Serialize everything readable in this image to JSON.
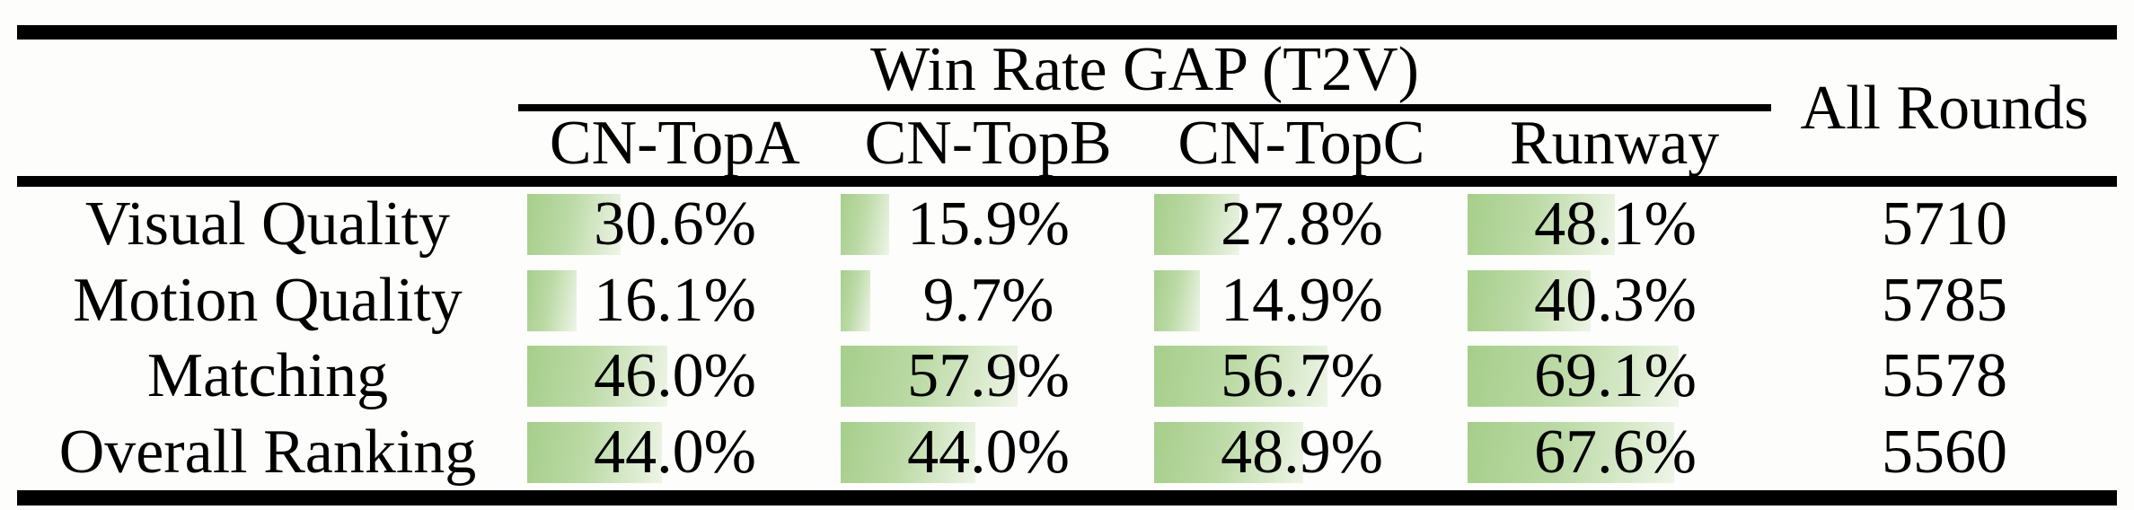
{
  "table": {
    "group_header": "Win Rate GAP (T2V)",
    "all_rounds_header": "All Rounds",
    "model_columns": [
      "CN-TopA",
      "CN-TopB",
      "CN-TopC",
      "Runway"
    ],
    "rows": [
      {
        "label": "Visual Quality",
        "win_rates_pct": [
          30.6,
          15.9,
          27.8,
          48.1
        ],
        "all_rounds": "5710"
      },
      {
        "label": "Motion Quality",
        "win_rates_pct": [
          16.1,
          9.7,
          14.9,
          40.3
        ],
        "all_rounds": "5785"
      },
      {
        "label": "Matching",
        "win_rates_pct": [
          46.0,
          57.9,
          56.7,
          69.1
        ],
        "all_rounds": "5578"
      },
      {
        "label": "Overall Ranking",
        "win_rates_pct": [
          44.0,
          44.0,
          48.9,
          67.6
        ],
        "all_rounds": "5560"
      }
    ]
  },
  "chart_data": {
    "type": "table",
    "title": "Win Rate GAP (T2V)",
    "columns": [
      "CN-TopA",
      "CN-TopB",
      "CN-TopC",
      "Runway",
      "All Rounds"
    ],
    "categories": [
      "Visual Quality",
      "Motion Quality",
      "Matching",
      "Overall Ranking"
    ],
    "series": [
      {
        "name": "CN-TopA",
        "values": [
          30.6,
          16.1,
          46.0,
          44.0
        ]
      },
      {
        "name": "CN-TopB",
        "values": [
          15.9,
          9.7,
          57.9,
          44.0
        ]
      },
      {
        "name": "CN-TopC",
        "values": [
          27.8,
          14.9,
          56.7,
          48.9
        ]
      },
      {
        "name": "Runway",
        "values": [
          48.1,
          40.3,
          69.1,
          67.6
        ]
      }
    ],
    "all_rounds": [
      5710,
      5785,
      5578,
      5560
    ],
    "value_unit": "%",
    "bar_scale": "data bars scaled so 100% fills the column width"
  },
  "colors": {
    "bar_green": "#a6ce8b",
    "bar_mid": "#bcdaa6",
    "bar_fade": "#eef5e7",
    "rule_black": "#000000",
    "background": "#fdfdfc"
  }
}
